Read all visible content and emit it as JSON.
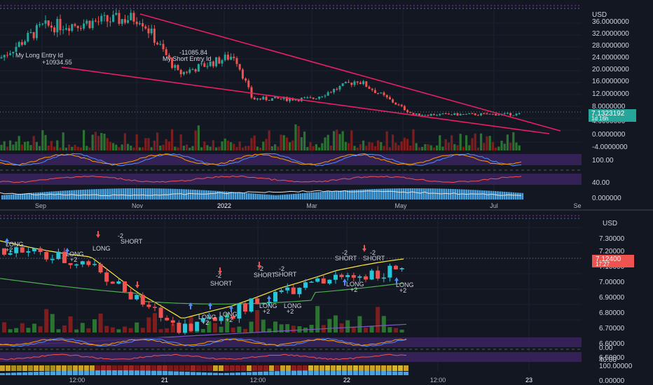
{
  "top_chart": {
    "currency": "USD",
    "price_axis_labels": [
      "36.0000000",
      "32.0000000",
      "28.0000000",
      "24.0000000",
      "20.0000000",
      "16.0000000",
      "12.0000000",
      "8.0000000",
      "4.0000000",
      "0.0000000",
      "-4.0000000",
      "100.00",
      "40.00",
      "0.000000"
    ],
    "last_price": "7.1323192",
    "countdown": "1d 16h",
    "date_labels": [
      "Sep",
      "Nov",
      "2022",
      "Mar",
      "May",
      "Jul",
      "Se"
    ],
    "annotations": {
      "long_entry": "My Long Entry Id",
      "long_pnl": "+10934.55",
      "short_pnl": "-11085.84",
      "short_entry": "My Short Entry Id"
    }
  },
  "bottom_chart": {
    "currency": "USD",
    "price_axis_labels": [
      "7.30000",
      "7.20000",
      "7.10000",
      "7.00000",
      "6.90000",
      "6.80000",
      "6.70000",
      "6.60000",
      "6.50000",
      "0.00",
      "40.00",
      "100.00000",
      "0.00000"
    ],
    "last_price": "7.12400",
    "countdown": "17:27",
    "time_labels": [
      "12:00",
      "21",
      "12:00",
      "22",
      "12:00",
      "23"
    ],
    "signals": {
      "long": "LONG",
      "short": "SHORT",
      "plus2": "+2",
      "minus2": "-2"
    }
  },
  "colors": {
    "background": "#131722",
    "up_candle": "#26c6da",
    "down_candle": "#ef5350",
    "trendline": "#e91e63",
    "price_badge_top": "#26a69a",
    "price_badge_bottom": "#ef5350",
    "oscillator_band": "#4a2b7a"
  },
  "chart_data": [
    {
      "type": "candlestick",
      "title": "",
      "y_unit": "USD",
      "x_range": [
        "Aug 2021",
        "Jul 2022"
      ],
      "ylim": [
        0,
        38
      ],
      "approx_close_path": [
        {
          "x": "Aug 2021",
          "y": 25
        },
        {
          "x": "Sep 2021",
          "y": 35
        },
        {
          "x": "Nov 2021",
          "y": 38
        },
        {
          "x": "Dec 2021",
          "y": 20
        },
        {
          "x": "2022",
          "y": 26
        },
        {
          "x": "Feb 2022",
          "y": 12
        },
        {
          "x": "Mar 2022",
          "y": 12
        },
        {
          "x": "Apr 2022",
          "y": 18
        },
        {
          "x": "May 2022",
          "y": 7
        },
        {
          "x": "Jul 2022",
          "y": 7.13
        }
      ],
      "trendlines": "falling wedge (two converging lines)"
    },
    {
      "type": "candlestick",
      "title": "",
      "y_unit": "USD",
      "x_range": [
        "20",
        "22"
      ],
      "ylim": [
        6.45,
        7.35
      ],
      "approx_close_path": [
        {
          "x": "20 00:00",
          "y": 7.25
        },
        {
          "x": "20 12:00",
          "y": 7.15
        },
        {
          "x": "21 00:00",
          "y": 6.9
        },
        {
          "x": "21 06:00",
          "y": 6.72
        },
        {
          "x": "21 12:00",
          "y": 6.82
        },
        {
          "x": "21 18:00",
          "y": 6.95
        },
        {
          "x": "22 00:00",
          "y": 7.05
        },
        {
          "x": "22 06:00",
          "y": 7.12
        }
      ]
    }
  ]
}
